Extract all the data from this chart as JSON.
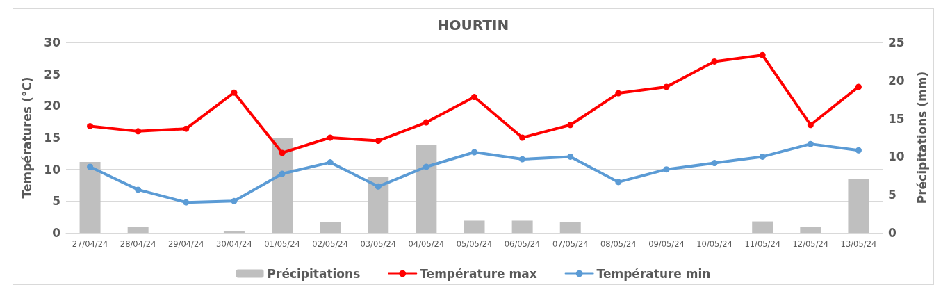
{
  "chart_data": {
    "type": "line",
    "title": "HOURTIN",
    "ylabel": "Températures (°C)",
    "y2label": "Précipitations (mm)",
    "categories": [
      "27/04/24",
      "28/04/24",
      "29/04/24",
      "30/04/24",
      "01/05/24",
      "02/05/24",
      "03/05/24",
      "04/05/24",
      "05/05/24",
      "06/05/24",
      "07/05/24",
      "08/05/24",
      "09/05/24",
      "10/05/24",
      "11/05/24",
      "12/05/24",
      "13/05/24"
    ],
    "series": [
      {
        "name": "Précipitations",
        "type": "bar",
        "axis": "y2",
        "color": "#bfbfbf",
        "values": [
          9.3,
          0.8,
          0,
          0.2,
          12.5,
          1.4,
          7.3,
          11.5,
          1.6,
          1.6,
          1.4,
          0,
          0,
          0,
          1.5,
          0.8,
          7.1
        ]
      },
      {
        "name": "Température max",
        "color": "#ff0000",
        "values": [
          16.8,
          16.0,
          16.4,
          22.1,
          12.6,
          15.0,
          14.5,
          17.4,
          21.4,
          15.0,
          17.0,
          22.0,
          23.0,
          27.0,
          28.0,
          17.0,
          23.0
        ]
      },
      {
        "name": "Température min",
        "color": "#5b9bd5",
        "values": [
          10.4,
          6.8,
          4.8,
          5.0,
          9.3,
          11.1,
          7.3,
          10.4,
          12.7,
          11.6,
          12.0,
          8.0,
          10.0,
          11.0,
          12.0,
          14.0,
          13.0
        ]
      }
    ],
    "ylim": [
      0,
      30
    ],
    "yticks": [
      0,
      5,
      10,
      15,
      20,
      25,
      30
    ],
    "y2lim": [
      0,
      25
    ],
    "y2ticks": [
      0,
      5,
      10,
      15,
      20,
      25
    ],
    "grid": "y",
    "legend": "bottom",
    "marker": "circle",
    "line_style": "solid"
  }
}
